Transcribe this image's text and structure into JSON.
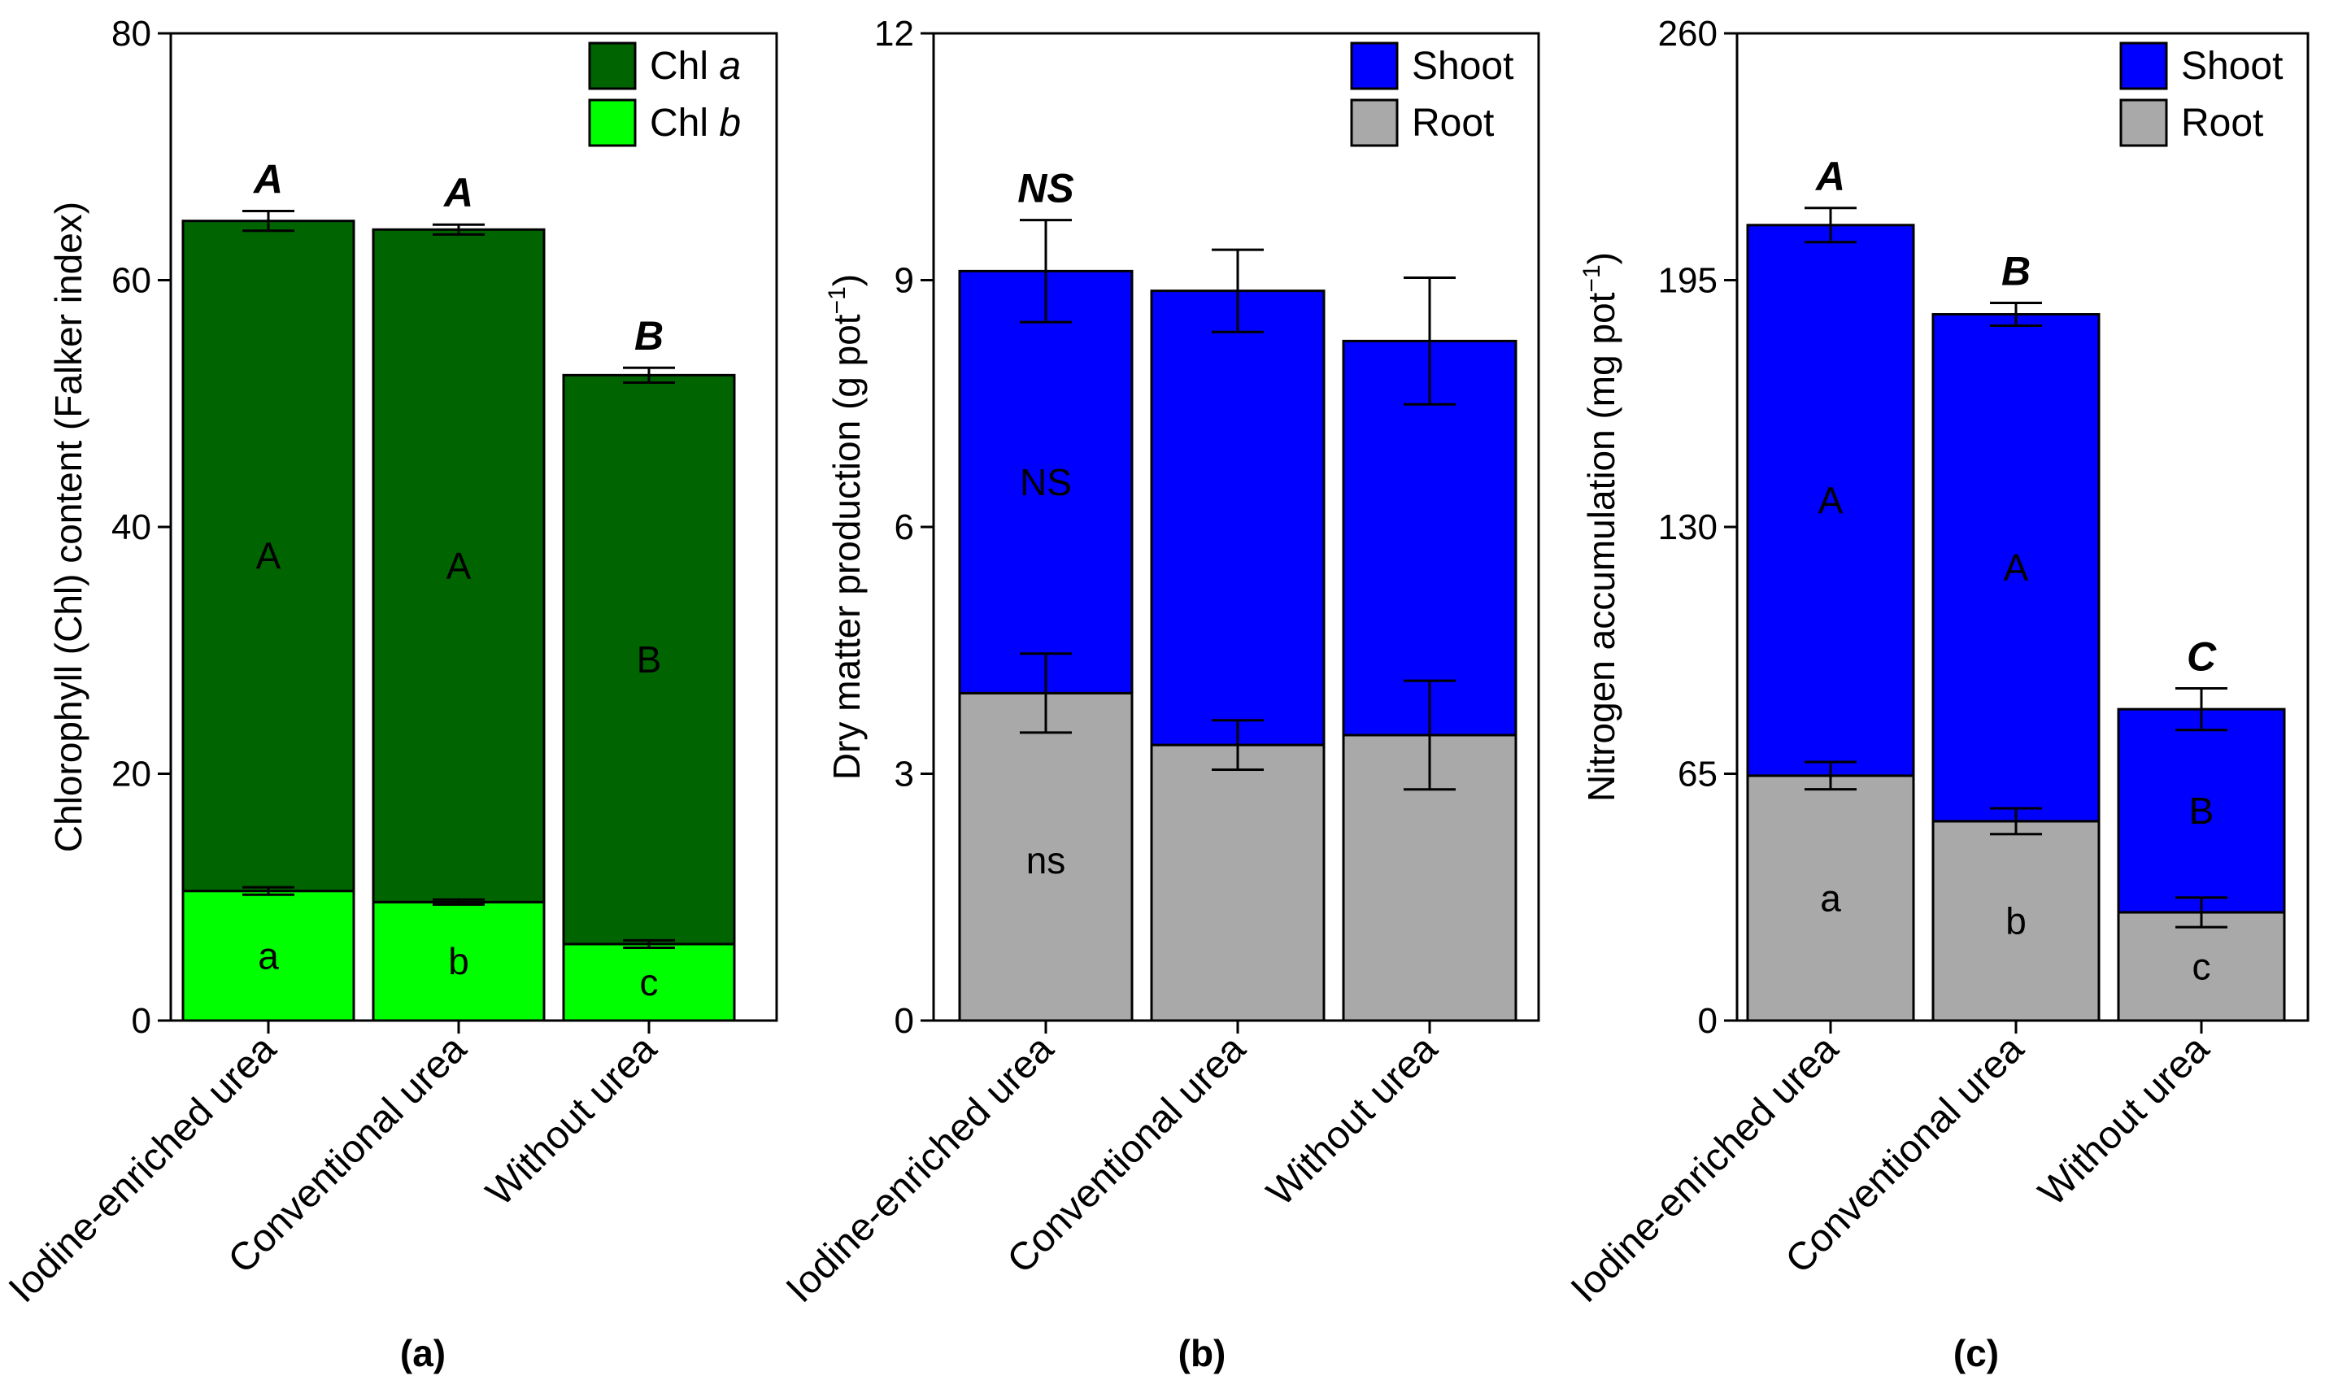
{
  "chart_data": [
    {
      "type": "bar",
      "stacked": true,
      "panel_label": "(a)",
      "ylabel_main": "Chlorophyll (Chl) content (Falker index)",
      "ylim": [
        0,
        80
      ],
      "yticks": [
        0,
        20,
        40,
        60,
        80
      ],
      "ytick_labels": [
        "0",
        "20",
        "40",
        "60",
        "80"
      ],
      "categories": [
        "Iodine-enriched urea",
        "Conventional urea",
        "Without urea"
      ],
      "series": [
        {
          "name": "Chl b",
          "legend_prefix": "Chl ",
          "legend_italic": "b",
          "color": "#00ff00",
          "values": [
            10.5,
            9.6,
            6.2
          ],
          "errors": [
            0.3,
            0.2,
            0.3
          ],
          "letters": [
            "a",
            "b",
            "c"
          ]
        },
        {
          "name": "Chl a",
          "legend_prefix": "Chl ",
          "legend_italic": "a",
          "color": "#006400",
          "values": [
            54.3,
            54.5,
            46.1
          ],
          "errors": [
            0.8,
            0.4,
            0.6
          ],
          "letters": [
            "A",
            "A",
            "B"
          ]
        }
      ],
      "legend_order": [
        1,
        0
      ],
      "total_letters": [
        "A",
        "A",
        "B"
      ],
      "legend_position": "top-right"
    },
    {
      "type": "bar",
      "stacked": true,
      "panel_label": "(b)",
      "ylabel_main": "Dry matter production (g pot",
      "ylabel_sup": "−1",
      "ylabel_end": ")",
      "ylim": [
        0,
        12
      ],
      "yticks": [
        0,
        3,
        6,
        9,
        12
      ],
      "ytick_labels": [
        "0",
        "3",
        "6",
        "9",
        "12"
      ],
      "categories": [
        "Iodine-enriched urea",
        "Conventional urea",
        "Without urea"
      ],
      "series": [
        {
          "name": "Root",
          "color": "#a9a9a9",
          "values": [
            3.98,
            3.35,
            3.47
          ],
          "errors": [
            0.48,
            0.3,
            0.66
          ],
          "letters": [
            "ns",
            "",
            ""
          ]
        },
        {
          "name": "Shoot",
          "color": "#0000ff",
          "values": [
            5.13,
            5.52,
            4.79
          ],
          "errors": [
            0.62,
            0.5,
            0.77
          ],
          "letters": [
            "NS",
            "",
            ""
          ]
        }
      ],
      "legend_order": [
        1,
        0
      ],
      "total_letters": [
        "NS",
        "",
        ""
      ],
      "legend_position": "top-right"
    },
    {
      "type": "bar",
      "stacked": true,
      "panel_label": "(c)",
      "ylabel_main": "Nitrogen accumulation (mg pot",
      "ylabel_sup": "−1",
      "ylabel_end": ")",
      "ylim": [
        0,
        260
      ],
      "yticks": [
        0,
        65,
        130,
        195,
        260
      ],
      "ytick_labels": [
        "0",
        "65",
        "130",
        "195",
        "260"
      ],
      "categories": [
        "Iodine-enriched urea",
        "Conventional urea",
        "Without urea"
      ],
      "series": [
        {
          "name": "Root",
          "color": "#a9a9a9",
          "values": [
            64.5,
            52.5,
            28.5
          ],
          "errors": [
            3.6,
            3.4,
            3.9
          ],
          "letters": [
            "a",
            "b",
            "c"
          ]
        },
        {
          "name": "Shoot",
          "color": "#0000ff",
          "values": [
            145.0,
            133.5,
            53.5
          ],
          "errors": [
            4.5,
            3.0,
            5.5
          ],
          "letters": [
            "A",
            "A",
            "B"
          ]
        }
      ],
      "legend_order": [
        1,
        0
      ],
      "total_letters": [
        "A",
        "B",
        "C"
      ],
      "legend_position": "top-right"
    }
  ]
}
